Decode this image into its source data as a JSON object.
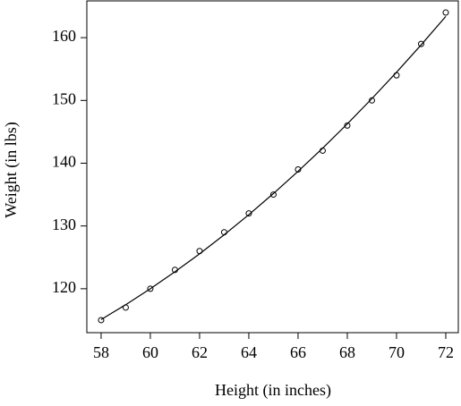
{
  "chart_data": {
    "type": "scatter",
    "x_label": "Height (in inches)",
    "y_label": "Weight (in lbs)",
    "x": [
      58,
      59,
      60,
      61,
      62,
      63,
      64,
      65,
      66,
      67,
      68,
      69,
      70,
      71,
      72
    ],
    "series": [
      {
        "style": "points",
        "color": "#000000",
        "values": [
          115,
          117,
          120,
          123,
          126,
          129,
          132,
          135,
          139,
          142,
          146,
          150,
          154,
          159,
          164
        ]
      },
      {
        "style": "line",
        "color": "#000000",
        "values": [
          115.09,
          117.46,
          120.0,
          122.7,
          125.56,
          128.6,
          131.8,
          135.17,
          138.7,
          142.4,
          146.26,
          150.29,
          154.49,
          158.85,
          163.38
        ]
      }
    ],
    "xlim": [
      57.42,
      72.51
    ],
    "ylim": [
      113.0,
      166.0
    ],
    "xticks": [
      58,
      60,
      62,
      64,
      66,
      68,
      70,
      72
    ],
    "yticks": [
      120,
      130,
      140,
      150,
      160
    ],
    "grid": false
  }
}
